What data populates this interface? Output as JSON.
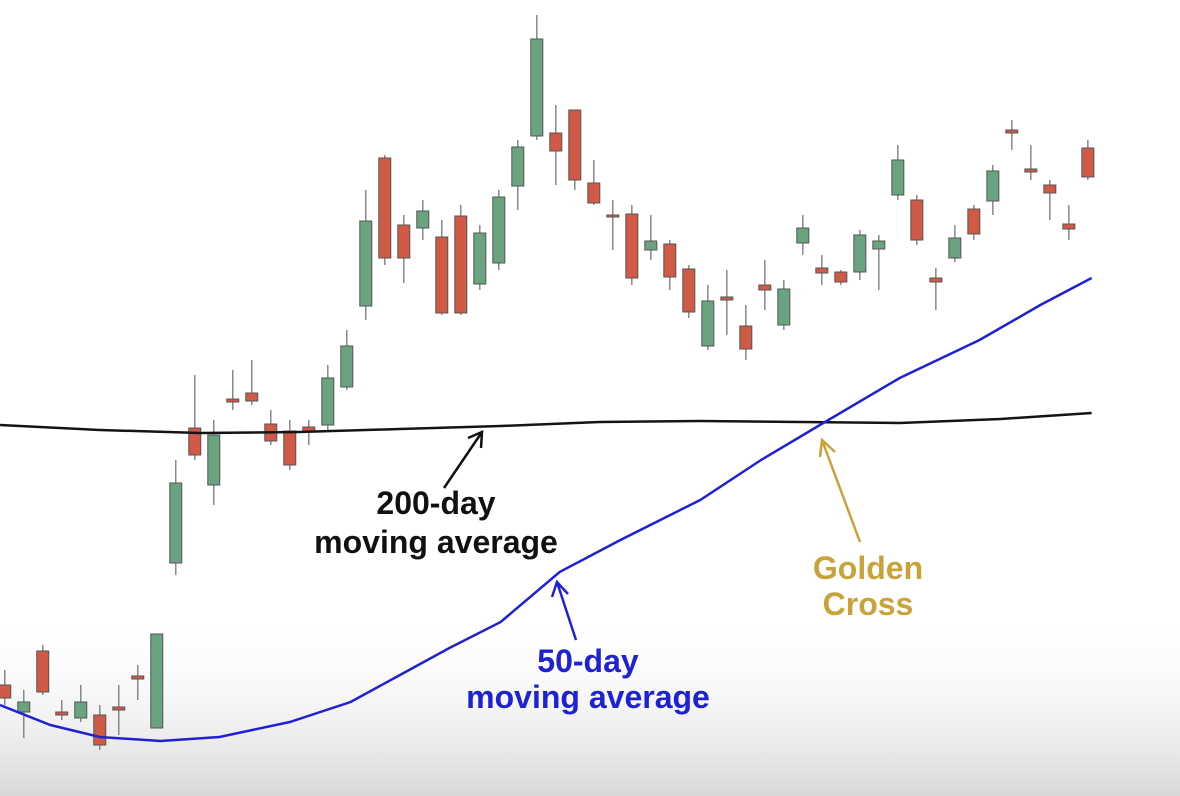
{
  "chart_data": {
    "type": "candlestick",
    "xlim": [
      0.75,
      62.85
    ],
    "ylim": [
      0,
      796
    ],
    "up_color": "#6aa37f",
    "down_color": "#d05a46",
    "open": [
      111,
      84,
      145,
      84,
      78,
      81,
      89,
      120,
      68,
      233,
      368,
      311,
      397,
      403,
      372,
      365,
      369,
      371,
      409,
      490,
      638,
      571,
      568,
      559,
      580,
      512,
      533,
      610,
      660,
      663,
      686,
      613,
      581,
      582,
      546,
      552,
      527,
      450,
      499,
      470,
      511,
      471,
      553,
      528,
      524,
      524,
      547,
      601,
      596,
      518,
      538,
      587,
      595,
      666,
      627,
      611,
      572,
      648
    ],
    "high": [
      126,
      106,
      151,
      96,
      111,
      91,
      111,
      131,
      162,
      336,
      421,
      376,
      426,
      436,
      386,
      376,
      376,
      431,
      466,
      606,
      641,
      581,
      596,
      576,
      591,
      571,
      606,
      656,
      781,
      691,
      686,
      636,
      596,
      591,
      581,
      556,
      531,
      511,
      526,
      491,
      536,
      516,
      581,
      541,
      526,
      566,
      561,
      651,
      601,
      528,
      571,
      591,
      631,
      676,
      651,
      616,
      591,
      656
    ],
    "low": [
      91,
      58,
      101,
      76,
      74,
      46,
      61,
      96,
      68,
      221,
      336,
      291,
      386,
      391,
      351,
      326,
      351,
      366,
      406,
      476,
      531,
      513,
      556,
      481,
      481,
      506,
      526,
      586,
      656,
      611,
      606,
      591,
      546,
      511,
      536,
      506,
      478,
      446,
      461,
      436,
      486,
      466,
      541,
      511,
      511,
      516,
      506,
      596,
      551,
      486,
      534,
      556,
      581,
      646,
      616,
      576,
      556,
      616
    ],
    "close": [
      98,
      94,
      104,
      81,
      94,
      51,
      86,
      117,
      162,
      313,
      341,
      361,
      394,
      395,
      355,
      331,
      364,
      418,
      450,
      575,
      538,
      538,
      585,
      483,
      483,
      563,
      599,
      649,
      757,
      645,
      616,
      593,
      579,
      518,
      555,
      519,
      484,
      495,
      496,
      447,
      506,
      507,
      568,
      523,
      514,
      561,
      555,
      636,
      556,
      514,
      558,
      562,
      625,
      663,
      624,
      603,
      567,
      619
    ],
    "lines": [
      {
        "name": "200-day",
        "color": "#141414",
        "x": [
          0.75,
          6.0,
          11.3,
          16.5,
          21.8,
          27.1,
          32.3,
          37.6,
          42.9,
          48.1,
          53.4,
          58.2
        ],
        "values": [
          371,
          366,
          363,
          364,
          367,
          370,
          374,
          375,
          374,
          373,
          377,
          383
        ]
      },
      {
        "name": "50-day",
        "color": "#1f22d2",
        "x": [
          0.75,
          3.4,
          6.0,
          9.2,
          12.3,
          16.0,
          19.2,
          21.8,
          24.4,
          27.1,
          30.2,
          33.4,
          37.6,
          40.8,
          43.9,
          48.1,
          52.3,
          55.5,
          58.2
        ],
        "values": [
          91,
          71,
          59,
          55,
          59,
          74,
          94,
          121,
          148,
          174,
          224,
          256,
          296,
          336,
          371,
          418,
          456,
          491,
          518
        ]
      }
    ],
    "annotations": [
      {
        "text": [
          "200-day",
          "moving average"
        ],
        "color": "#111111"
      },
      {
        "text": [
          "50-day",
          "moving average"
        ],
        "color": "#1f22d2"
      },
      {
        "text": [
          "Golden",
          "Cross"
        ],
        "color": "#c9a23a"
      }
    ]
  }
}
